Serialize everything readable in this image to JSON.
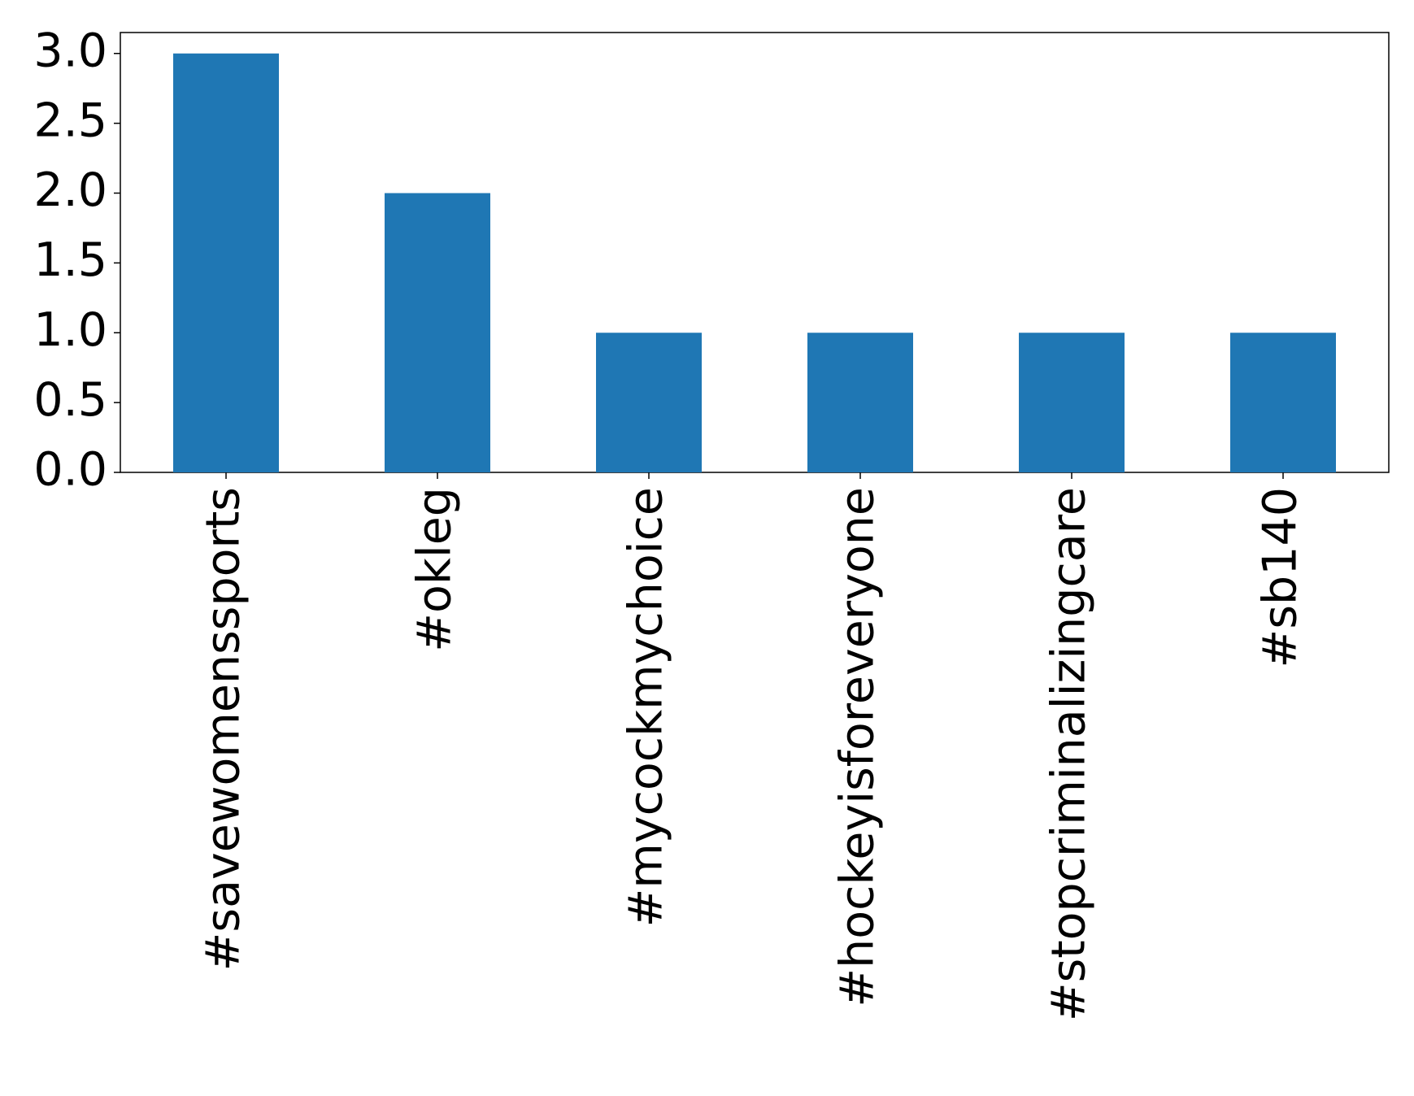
{
  "chart_data": {
    "type": "bar",
    "categories": [
      "#savewomenssports",
      "#okleg",
      "#mycockmychoice",
      "#hockeyisforeveryone",
      "#stopcriminalizingcare",
      "#sb140"
    ],
    "values": [
      3,
      2,
      1,
      1,
      1,
      1
    ],
    "color": "#1f77b4",
    "ylim": [
      0,
      3.15
    ],
    "yticks": [
      {
        "value": 0,
        "label": "0.0"
      },
      0.5,
      {
        "value": 1,
        "label": "1.0"
      },
      1.5,
      {
        "value": 2,
        "label": "2.0"
      },
      2.5,
      {
        "value": 3,
        "label": "3.0"
      }
    ],
    "grid": false
  }
}
